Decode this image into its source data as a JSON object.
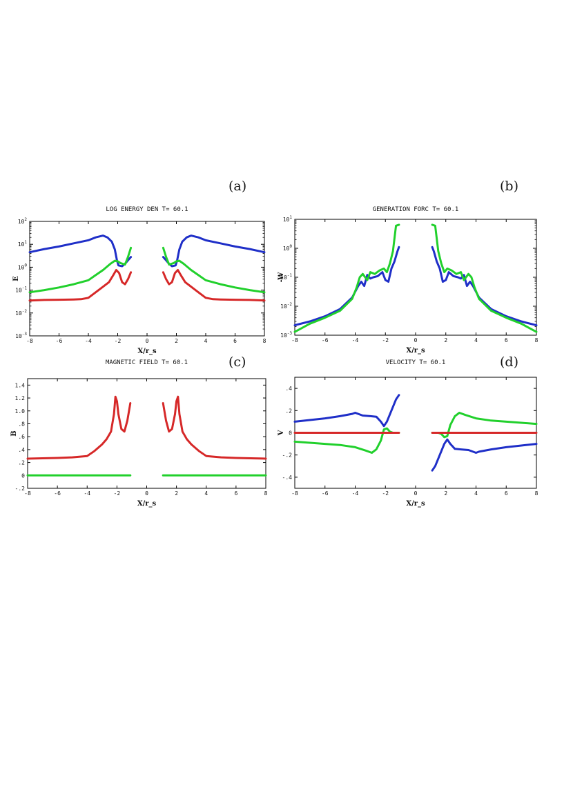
{
  "chart_data": [
    {
      "id": "a",
      "panel_label": "(a)",
      "type": "line",
      "title": "LOG ENERGY DEN T=  60.1",
      "xlabel": "X/r_s",
      "ylabel": "E",
      "xlim": [
        -8,
        8
      ],
      "yscale": "log",
      "ylim_exp": [
        -3,
        2
      ],
      "xticks": [
        -8,
        -6,
        -4,
        -2,
        0,
        2,
        4,
        6,
        8
      ],
      "ytick_exps": [
        -3,
        -2,
        -1,
        0,
        1,
        2
      ],
      "ytick_base": "10",
      "series": [
        {
          "name": "blue",
          "color": "#1f2fc8",
          "x": [
            -8,
            -7,
            -6,
            -5,
            -4,
            -3.5,
            -3,
            -2.7,
            -2.4,
            -2.2,
            -2.05,
            -1.95,
            -1.7,
            -1.5,
            -1.3,
            -1.1,
            1.1,
            1.3,
            1.5,
            1.7,
            1.95,
            2.05,
            2.2,
            2.4,
            2.7,
            3,
            3.5,
            4,
            5,
            6,
            7,
            8
          ],
          "y": [
            4.5,
            6.2,
            8,
            11,
            15,
            20,
            24,
            20,
            13,
            6,
            2,
            1.2,
            1.1,
            1.4,
            2,
            2.8,
            2.8,
            2,
            1.4,
            1.1,
            1.2,
            2,
            6,
            13,
            20,
            24,
            20,
            15,
            11,
            8,
            6.2,
            4.5
          ]
        },
        {
          "name": "green",
          "color": "#21d02c",
          "x": [
            -8,
            -7,
            -6,
            -5,
            -4,
            -3.5,
            -3,
            -2.5,
            -2.2,
            -2,
            -1.8,
            -1.5,
            -1.3,
            -1.1,
            1.1,
            1.3,
            1.5,
            1.8,
            2,
            2.2,
            2.5,
            3,
            3.5,
            4,
            5,
            6,
            7,
            8
          ],
          "y": [
            0.08,
            0.1,
            0.13,
            0.18,
            0.27,
            0.45,
            0.75,
            1.4,
            1.9,
            1.8,
            1.5,
            1.3,
            2.8,
            7,
            7,
            2.8,
            1.3,
            1.5,
            1.8,
            1.9,
            1.4,
            0.75,
            0.45,
            0.27,
            0.18,
            0.13,
            0.1,
            0.08
          ]
        },
        {
          "name": "red",
          "color": "#d62828",
          "x": [
            -8,
            -7,
            -6,
            -5,
            -4.5,
            -4,
            -3.5,
            -3,
            -2.6,
            -2.3,
            -2.1,
            -1.9,
            -1.7,
            -1.5,
            -1.3,
            -1.1,
            1.1,
            1.3,
            1.5,
            1.7,
            1.9,
            2.1,
            2.3,
            2.6,
            3,
            3.5,
            4,
            4.5,
            5,
            6,
            7,
            8
          ],
          "y": [
            0.035,
            0.037,
            0.038,
            0.039,
            0.04,
            0.046,
            0.08,
            0.14,
            0.22,
            0.45,
            0.75,
            0.55,
            0.22,
            0.18,
            0.3,
            0.6,
            0.6,
            0.3,
            0.18,
            0.22,
            0.55,
            0.75,
            0.45,
            0.22,
            0.14,
            0.08,
            0.046,
            0.04,
            0.039,
            0.038,
            0.037,
            0.035
          ]
        }
      ]
    },
    {
      "id": "b",
      "panel_label": "(b)",
      "type": "line",
      "title": "GENERATION FORC T=  60.1",
      "xlabel": "X/r_s",
      "ylabel": "-W",
      "xlim": [
        -8,
        8
      ],
      "yscale": "log",
      "ylim_exp": [
        -3,
        1
      ],
      "xticks": [
        -8,
        -6,
        -4,
        -2,
        0,
        2,
        4,
        6,
        8
      ],
      "ytick_exps": [
        -3,
        -2,
        -1,
        0,
        1
      ],
      "ytick_base": "10",
      "series": [
        {
          "name": "blue",
          "color": "#1f2fc8",
          "x": [
            -8,
            -7,
            -6,
            -5,
            -4.2,
            -3.8,
            -3.6,
            -3.4,
            -3.2,
            -3.0,
            -2.8,
            -2.5,
            -2.2,
            -2.0,
            -1.8,
            -1.6,
            -1.4,
            -1.2,
            -1.1,
            1.1,
            1.2,
            1.4,
            1.6,
            1.8,
            2.0,
            2.2,
            2.5,
            2.8,
            3.0,
            3.2,
            3.4,
            3.6,
            3.8,
            4.2,
            5,
            6,
            7,
            8
          ],
          "y": [
            0.0022,
            0.003,
            0.0045,
            0.008,
            0.02,
            0.05,
            0.07,
            0.05,
            0.12,
            0.09,
            0.1,
            0.11,
            0.15,
            0.08,
            0.07,
            0.2,
            0.35,
            0.8,
            1.1,
            1.1,
            0.8,
            0.35,
            0.2,
            0.07,
            0.08,
            0.15,
            0.11,
            0.1,
            0.09,
            0.12,
            0.05,
            0.07,
            0.05,
            0.02,
            0.008,
            0.0045,
            0.003,
            0.0022
          ]
        },
        {
          "name": "green",
          "color": "#21d02c",
          "x": [
            -8,
            -7.5,
            -7,
            -6,
            -5,
            -4.2,
            -3.9,
            -3.7,
            -3.5,
            -3.2,
            -3.0,
            -2.7,
            -2.4,
            -2.1,
            -1.9,
            -1.7,
            -1.5,
            -1.3,
            -1.1,
            1.1,
            1.3,
            1.5,
            1.7,
            1.9,
            2.1,
            2.4,
            2.7,
            3.0,
            3.2,
            3.5,
            3.7,
            3.9,
            4.2,
            5,
            6,
            7,
            7.5,
            8
          ],
          "y": [
            0.0013,
            0.0018,
            0.0025,
            0.004,
            0.007,
            0.018,
            0.045,
            0.1,
            0.13,
            0.08,
            0.15,
            0.13,
            0.17,
            0.2,
            0.15,
            0.3,
            0.8,
            6,
            6.5,
            6.5,
            6,
            0.8,
            0.3,
            0.15,
            0.2,
            0.17,
            0.13,
            0.15,
            0.08,
            0.13,
            0.1,
            0.045,
            0.018,
            0.007,
            0.004,
            0.0025,
            0.0018,
            0.0013
          ]
        }
      ]
    },
    {
      "id": "c",
      "panel_label": "(c)",
      "type": "line",
      "title": "MAGNETIC FIELD T=  60.1",
      "xlabel": "X/r_s",
      "ylabel": "B",
      "xlim": [
        -8,
        8
      ],
      "yscale": "linear",
      "ylim": [
        -0.2,
        1.5
      ],
      "xticks": [
        -8,
        -6,
        -4,
        -2,
        0,
        2,
        4,
        6,
        8
      ],
      "yticks": [
        -0.2,
        0,
        0.2,
        0.4,
        0.6,
        0.8,
        1.0,
        1.2,
        1.4
      ],
      "ytick_labels": [
        "-.2",
        "0",
        ".2",
        ".4",
        ".6",
        ".8",
        "1.0",
        "1.2",
        "1.4"
      ],
      "series": [
        {
          "name": "red",
          "color": "#d62828",
          "x": [
            -8,
            -7,
            -6,
            -5,
            -4,
            -3.5,
            -3,
            -2.7,
            -2.4,
            -2.2,
            -2.1,
            -2.0,
            -1.9,
            -1.7,
            -1.5,
            -1.3,
            -1.1,
            1.1,
            1.3,
            1.5,
            1.7,
            1.9,
            2.0,
            2.1,
            2.2,
            2.4,
            2.7,
            3,
            3.5,
            4,
            5,
            6,
            7,
            8
          ],
          "y": [
            0.26,
            0.265,
            0.27,
            0.28,
            0.3,
            0.38,
            0.48,
            0.56,
            0.68,
            0.95,
            1.22,
            1.15,
            0.95,
            0.72,
            0.68,
            0.85,
            1.12,
            1.12,
            0.85,
            0.68,
            0.72,
            0.95,
            1.15,
            1.22,
            0.95,
            0.68,
            0.56,
            0.48,
            0.38,
            0.3,
            0.28,
            0.27,
            0.265,
            0.26
          ]
        },
        {
          "name": "green",
          "color": "#21d02c",
          "x": [
            -8,
            -4,
            -2,
            -1.1,
            1.1,
            2,
            4,
            8
          ],
          "y": [
            0,
            0,
            0,
            0,
            0,
            0,
            0,
            0
          ]
        }
      ]
    },
    {
      "id": "d",
      "panel_label": "(d)",
      "type": "line",
      "title": "VELOCITY       T=  60.1",
      "xlabel": "X/r_s",
      "ylabel": "V",
      "xlim": [
        -8,
        8
      ],
      "yscale": "linear",
      "ylim": [
        -0.5,
        0.5
      ],
      "xticks": [
        -8,
        -6,
        -4,
        -2,
        0,
        2,
        4,
        6,
        8
      ],
      "yticks": [
        -0.4,
        -0.2,
        0,
        0.2,
        0.4
      ],
      "ytick_labels": [
        "-.4",
        "-.2",
        "0",
        ".2",
        ".4"
      ],
      "series": [
        {
          "name": "blue",
          "color": "#1f2fc8",
          "x": [
            -8,
            -7,
            -6,
            -5,
            -4.2,
            -4,
            -3.5,
            -3,
            -2.6,
            -2.3,
            -2.1,
            -1.9,
            -1.6,
            -1.3,
            -1.1,
            1.1,
            1.3,
            1.6,
            1.9,
            2.1,
            2.3,
            2.6,
            3,
            3.5,
            4,
            4.2,
            5,
            6,
            7,
            8
          ],
          "y": [
            0.1,
            0.115,
            0.13,
            0.15,
            0.17,
            0.18,
            0.155,
            0.15,
            0.145,
            0.1,
            0.06,
            0.1,
            0.2,
            0.3,
            0.34,
            -0.34,
            -0.3,
            -0.2,
            -0.1,
            -0.06,
            -0.1,
            -0.145,
            -0.15,
            -0.155,
            -0.18,
            -0.17,
            -0.15,
            -0.13,
            -0.115,
            -0.1
          ]
        },
        {
          "name": "green",
          "color": "#21d02c",
          "x": [
            -8,
            -7,
            -6,
            -5,
            -4,
            -3.3,
            -2.9,
            -2.6,
            -2.3,
            -2.1,
            -1.9,
            -1.7,
            -1.5,
            -1.1,
            1.1,
            1.5,
            1.7,
            1.9,
            2.1,
            2.3,
            2.6,
            2.9,
            3.3,
            4,
            5,
            6,
            7,
            8
          ],
          "y": [
            -0.08,
            -0.09,
            -0.1,
            -0.11,
            -0.13,
            -0.16,
            -0.18,
            -0.15,
            -0.07,
            0.03,
            0.04,
            0.01,
            0,
            0,
            0,
            0,
            -0.01,
            -0.04,
            -0.03,
            0.07,
            0.15,
            0.18,
            0.16,
            0.13,
            0.11,
            0.1,
            0.09,
            0.08
          ]
        },
        {
          "name": "red",
          "color": "#d62828",
          "x": [
            -8,
            -4,
            -2,
            -1.1,
            1.1,
            2,
            4,
            8
          ],
          "y": [
            0,
            0,
            0,
            0,
            0,
            0,
            0,
            0
          ]
        }
      ]
    }
  ]
}
